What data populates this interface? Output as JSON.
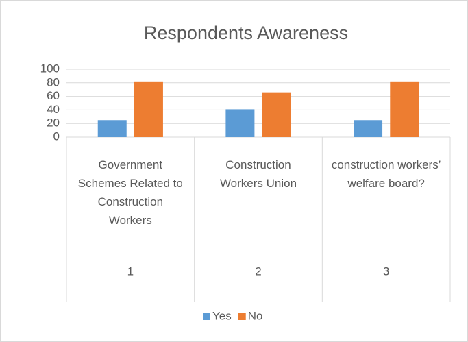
{
  "chart_data": {
    "type": "bar",
    "title": "Respondents Awareness",
    "categories": [
      "Government Schemes Related to Construction Workers",
      "Construction Workers Union",
      "construction workers’ welfare board?"
    ],
    "category_numbers": [
      "1",
      "2",
      "3"
    ],
    "series": [
      {
        "name": "Yes",
        "color": "#5b9bd5",
        "values": [
          25,
          41,
          25
        ]
      },
      {
        "name": "No",
        "color": "#ed7d31",
        "values": [
          82,
          66,
          82
        ]
      }
    ],
    "ylim": [
      0,
      100
    ],
    "yticks": [
      0,
      20,
      40,
      60,
      80,
      100
    ],
    "grid": true,
    "legend": "bottom"
  }
}
